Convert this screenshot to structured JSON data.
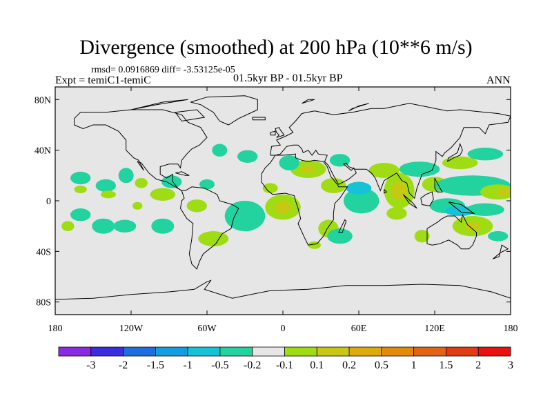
{
  "chart_data": {
    "type": "heatmap",
    "title": "Divergence (smoothed) at 200 hPa (10**6 m/s)",
    "stats": "rmsd= 0.0916869 diff= -3.53125e-05",
    "experiment": "Expt = temiC1-temiC",
    "period": "01.5kyr BP - 01.5kyr BP",
    "season": "ANN",
    "xlim": [
      -180,
      180
    ],
    "ylim": [
      -90,
      90
    ],
    "x_ticks": [
      {
        "value": -180,
        "label": "180"
      },
      {
        "value": -120,
        "label": "120W"
      },
      {
        "value": -60,
        "label": "60W"
      },
      {
        "value": 0,
        "label": "0"
      },
      {
        "value": 60,
        "label": "60E"
      },
      {
        "value": 120,
        "label": "120E"
      },
      {
        "value": 180,
        "label": "180"
      }
    ],
    "y_ticks": [
      {
        "value": 80,
        "label": "80N"
      },
      {
        "value": 40,
        "label": "40N"
      },
      {
        "value": 0,
        "label": "0"
      },
      {
        "value": -40,
        "label": "40S"
      },
      {
        "value": -80,
        "label": "80S"
      }
    ],
    "colorbar": {
      "labels": [
        "-3",
        "-2",
        "-1.5",
        "-1",
        "-0.5",
        "-0.2",
        "-0.1",
        "0.1",
        "0.2",
        "0.5",
        "1",
        "1.5",
        "2",
        "3"
      ],
      "colors": [
        "#8a2be2",
        "#3a2ee0",
        "#1e6ee0",
        "#139dde",
        "#16c3d6",
        "#22d3a0",
        "#e6e6e6",
        "#a0dc14",
        "#c8c814",
        "#dcaa0a",
        "#e08c0a",
        "#e06414",
        "#e03c14",
        "#ee1010"
      ]
    },
    "background_color": "#e6e6e6",
    "blobs": [
      {
        "lon": -160,
        "lat": 18,
        "rlon": 8,
        "rlat": 5,
        "bin": 5
      },
      {
        "lon": -160,
        "lat": 9,
        "rlon": 5,
        "rlat": 3,
        "bin": 7
      },
      {
        "lon": -160,
        "lat": -11,
        "rlon": 8,
        "rlat": 5,
        "bin": 5
      },
      {
        "lon": -170,
        "lat": -20,
        "rlon": 5,
        "rlat": 4,
        "bin": 7
      },
      {
        "lon": -142,
        "lat": -20,
        "rlon": 9,
        "rlat": 6,
        "bin": 5
      },
      {
        "lon": -140,
        "lat": 12,
        "rlon": 8,
        "rlat": 5,
        "bin": 5
      },
      {
        "lon": -138,
        "lat": 5,
        "rlon": 6,
        "rlat": 3,
        "bin": 7
      },
      {
        "lon": -124,
        "lat": 20,
        "rlon": 6,
        "rlat": 6,
        "bin": 5
      },
      {
        "lon": -112,
        "lat": 14,
        "rlon": 5,
        "rlat": 4,
        "bin": 7
      },
      {
        "lon": -115,
        "lat": -4,
        "rlon": 4,
        "rlat": 3,
        "bin": 7
      },
      {
        "lon": -125,
        "lat": -20,
        "rlon": 9,
        "rlat": 5,
        "bin": 5
      },
      {
        "lon": -95,
        "lat": 5,
        "rlon": 10,
        "rlat": 5,
        "bin": 7
      },
      {
        "lon": -88,
        "lat": 15,
        "rlon": 8,
        "rlat": 5,
        "bin": 5
      },
      {
        "lon": -60,
        "lat": 13,
        "rlon": 6,
        "rlat": 4,
        "bin": 5
      },
      {
        "lon": -68,
        "lat": -4,
        "rlon": 8,
        "rlat": 5,
        "bin": 7
      },
      {
        "lon": -95,
        "lat": -20,
        "rlon": 9,
        "rlat": 6,
        "bin": 5
      },
      {
        "lon": -55,
        "lat": -30,
        "rlon": 12,
        "rlat": 6,
        "bin": 7
      },
      {
        "lon": -50,
        "lat": 40,
        "rlon": 6,
        "rlat": 5,
        "bin": 5
      },
      {
        "lon": -28,
        "lat": 35,
        "rlon": 8,
        "rlat": 5,
        "bin": 5
      },
      {
        "lon": -30,
        "lat": -12,
        "rlon": 16,
        "rlat": 12,
        "bin": 5
      },
      {
        "lon": 0,
        "lat": -5,
        "rlon": 14,
        "rlat": 10,
        "bin": 7
      },
      {
        "lon": 0,
        "lat": -5,
        "rlon": 6,
        "rlat": 5,
        "bin": 8
      },
      {
        "lon": -10,
        "lat": 10,
        "rlon": 6,
        "rlat": 4,
        "bin": 7
      },
      {
        "lon": 20,
        "lat": 25,
        "rlon": 14,
        "rlat": 7,
        "bin": 7
      },
      {
        "lon": 20,
        "lat": 25,
        "rlon": 6,
        "rlat": 3,
        "bin": 8
      },
      {
        "lon": 40,
        "lat": 12,
        "rlon": 10,
        "rlat": 6,
        "bin": 7
      },
      {
        "lon": 5,
        "lat": 30,
        "rlon": 8,
        "rlat": 6,
        "bin": 5
      },
      {
        "lon": 45,
        "lat": 32,
        "rlon": 8,
        "rlat": 5,
        "bin": 5
      },
      {
        "lon": 36,
        "lat": -22,
        "rlon": 8,
        "rlat": 7,
        "bin": 7
      },
      {
        "lon": 25,
        "lat": -35,
        "rlon": 5,
        "rlat": 3,
        "bin": 7
      },
      {
        "lon": 45,
        "lat": -28,
        "rlon": 10,
        "rlat": 6,
        "bin": 5
      },
      {
        "lon": 62,
        "lat": 0,
        "rlon": 14,
        "rlat": 10,
        "bin": 5
      },
      {
        "lon": 60,
        "lat": 10,
        "rlon": 10,
        "rlat": 5,
        "bin": 4
      },
      {
        "lon": 80,
        "lat": 24,
        "rlon": 12,
        "rlat": 6,
        "bin": 7
      },
      {
        "lon": 92,
        "lat": 8,
        "rlon": 12,
        "rlat": 14,
        "bin": 7
      },
      {
        "lon": 92,
        "lat": 8,
        "rlon": 6,
        "rlat": 7,
        "bin": 8
      },
      {
        "lon": 90,
        "lat": -10,
        "rlon": 8,
        "rlat": 5,
        "bin": 7
      },
      {
        "lon": 108,
        "lat": 25,
        "rlon": 16,
        "rlat": 6,
        "bin": 5
      },
      {
        "lon": 120,
        "lat": 13,
        "rlon": 10,
        "rlat": 6,
        "bin": 7
      },
      {
        "lon": 150,
        "lat": 12,
        "rlon": 30,
        "rlat": 8,
        "bin": 5
      },
      {
        "lon": 140,
        "lat": 30,
        "rlon": 14,
        "rlat": 5,
        "bin": 7
      },
      {
        "lon": 160,
        "lat": 37,
        "rlon": 14,
        "rlat": 5,
        "bin": 5
      },
      {
        "lon": 170,
        "lat": 7,
        "rlon": 14,
        "rlat": 6,
        "bin": 7
      },
      {
        "lon": 175,
        "lat": 7,
        "rlon": 6,
        "rlat": 3,
        "bin": 8
      },
      {
        "lon": 130,
        "lat": -4,
        "rlon": 14,
        "rlat": 6,
        "bin": 5
      },
      {
        "lon": 140,
        "lat": -8,
        "rlon": 12,
        "rlat": 4,
        "bin": 4
      },
      {
        "lon": 160,
        "lat": -7,
        "rlon": 15,
        "rlat": 5,
        "bin": 5
      },
      {
        "lon": 150,
        "lat": -20,
        "rlon": 16,
        "rlat": 8,
        "bin": 7
      },
      {
        "lon": 150,
        "lat": -20,
        "rlon": 6,
        "rlat": 3,
        "bin": 8
      },
      {
        "lon": 110,
        "lat": -28,
        "rlon": 6,
        "rlat": 5,
        "bin": 7
      },
      {
        "lon": 170,
        "lat": -28,
        "rlon": 8,
        "rlat": 4,
        "bin": 5
      }
    ]
  }
}
